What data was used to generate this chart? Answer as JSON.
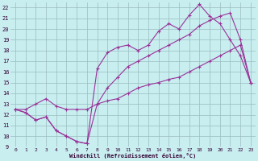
{
  "xlabel": "Windchill (Refroidissement éolien,°C)",
  "bg_color": "#c8eef0",
  "grid_color": "#9bbcbe",
  "line_color": "#993399",
  "xlim": [
    -0.5,
    23.5
  ],
  "ylim": [
    9,
    22.5
  ],
  "xticks": [
    0,
    1,
    2,
    3,
    4,
    5,
    6,
    7,
    8,
    9,
    10,
    11,
    12,
    13,
    14,
    15,
    16,
    17,
    18,
    19,
    20,
    21,
    22,
    23
  ],
  "yticks": [
    9,
    10,
    11,
    12,
    13,
    14,
    15,
    16,
    17,
    18,
    19,
    20,
    21,
    22
  ],
  "line1_x": [
    0,
    1,
    2,
    3,
    4,
    5,
    6,
    7,
    8,
    9,
    10,
    11,
    12,
    13,
    14,
    15,
    16,
    17,
    18,
    19,
    20,
    21,
    22,
    23
  ],
  "line1_y": [
    12.5,
    12.2,
    11.5,
    11.8,
    10.5,
    10.0,
    9.5,
    9.3,
    16.3,
    17.8,
    18.3,
    18.5,
    18.0,
    18.5,
    19.8,
    20.5,
    20.0,
    21.3,
    22.3,
    21.2,
    20.5,
    19.0,
    17.5,
    15.0
  ],
  "line2_x": [
    0,
    1,
    2,
    3,
    4,
    5,
    6,
    7,
    8,
    9,
    10,
    11,
    12,
    13,
    14,
    15,
    16,
    17,
    18,
    19,
    20,
    21,
    22,
    23
  ],
  "line2_y": [
    12.5,
    12.2,
    11.5,
    11.8,
    10.5,
    10.0,
    9.5,
    9.3,
    13.0,
    14.5,
    15.5,
    16.5,
    17.0,
    17.5,
    18.0,
    18.5,
    19.0,
    19.5,
    20.3,
    20.8,
    21.2,
    21.5,
    19.0,
    15.0
  ],
  "line3_x": [
    0,
    1,
    2,
    3,
    4,
    5,
    6,
    7,
    8,
    9,
    10,
    11,
    12,
    13,
    14,
    15,
    16,
    17,
    18,
    19,
    20,
    21,
    22,
    23
  ],
  "line3_y": [
    12.5,
    12.5,
    13.0,
    13.5,
    12.8,
    12.5,
    12.5,
    12.5,
    13.0,
    13.3,
    13.5,
    14.0,
    14.5,
    14.8,
    15.0,
    15.3,
    15.5,
    16.0,
    16.5,
    17.0,
    17.5,
    18.0,
    18.5,
    15.0
  ]
}
